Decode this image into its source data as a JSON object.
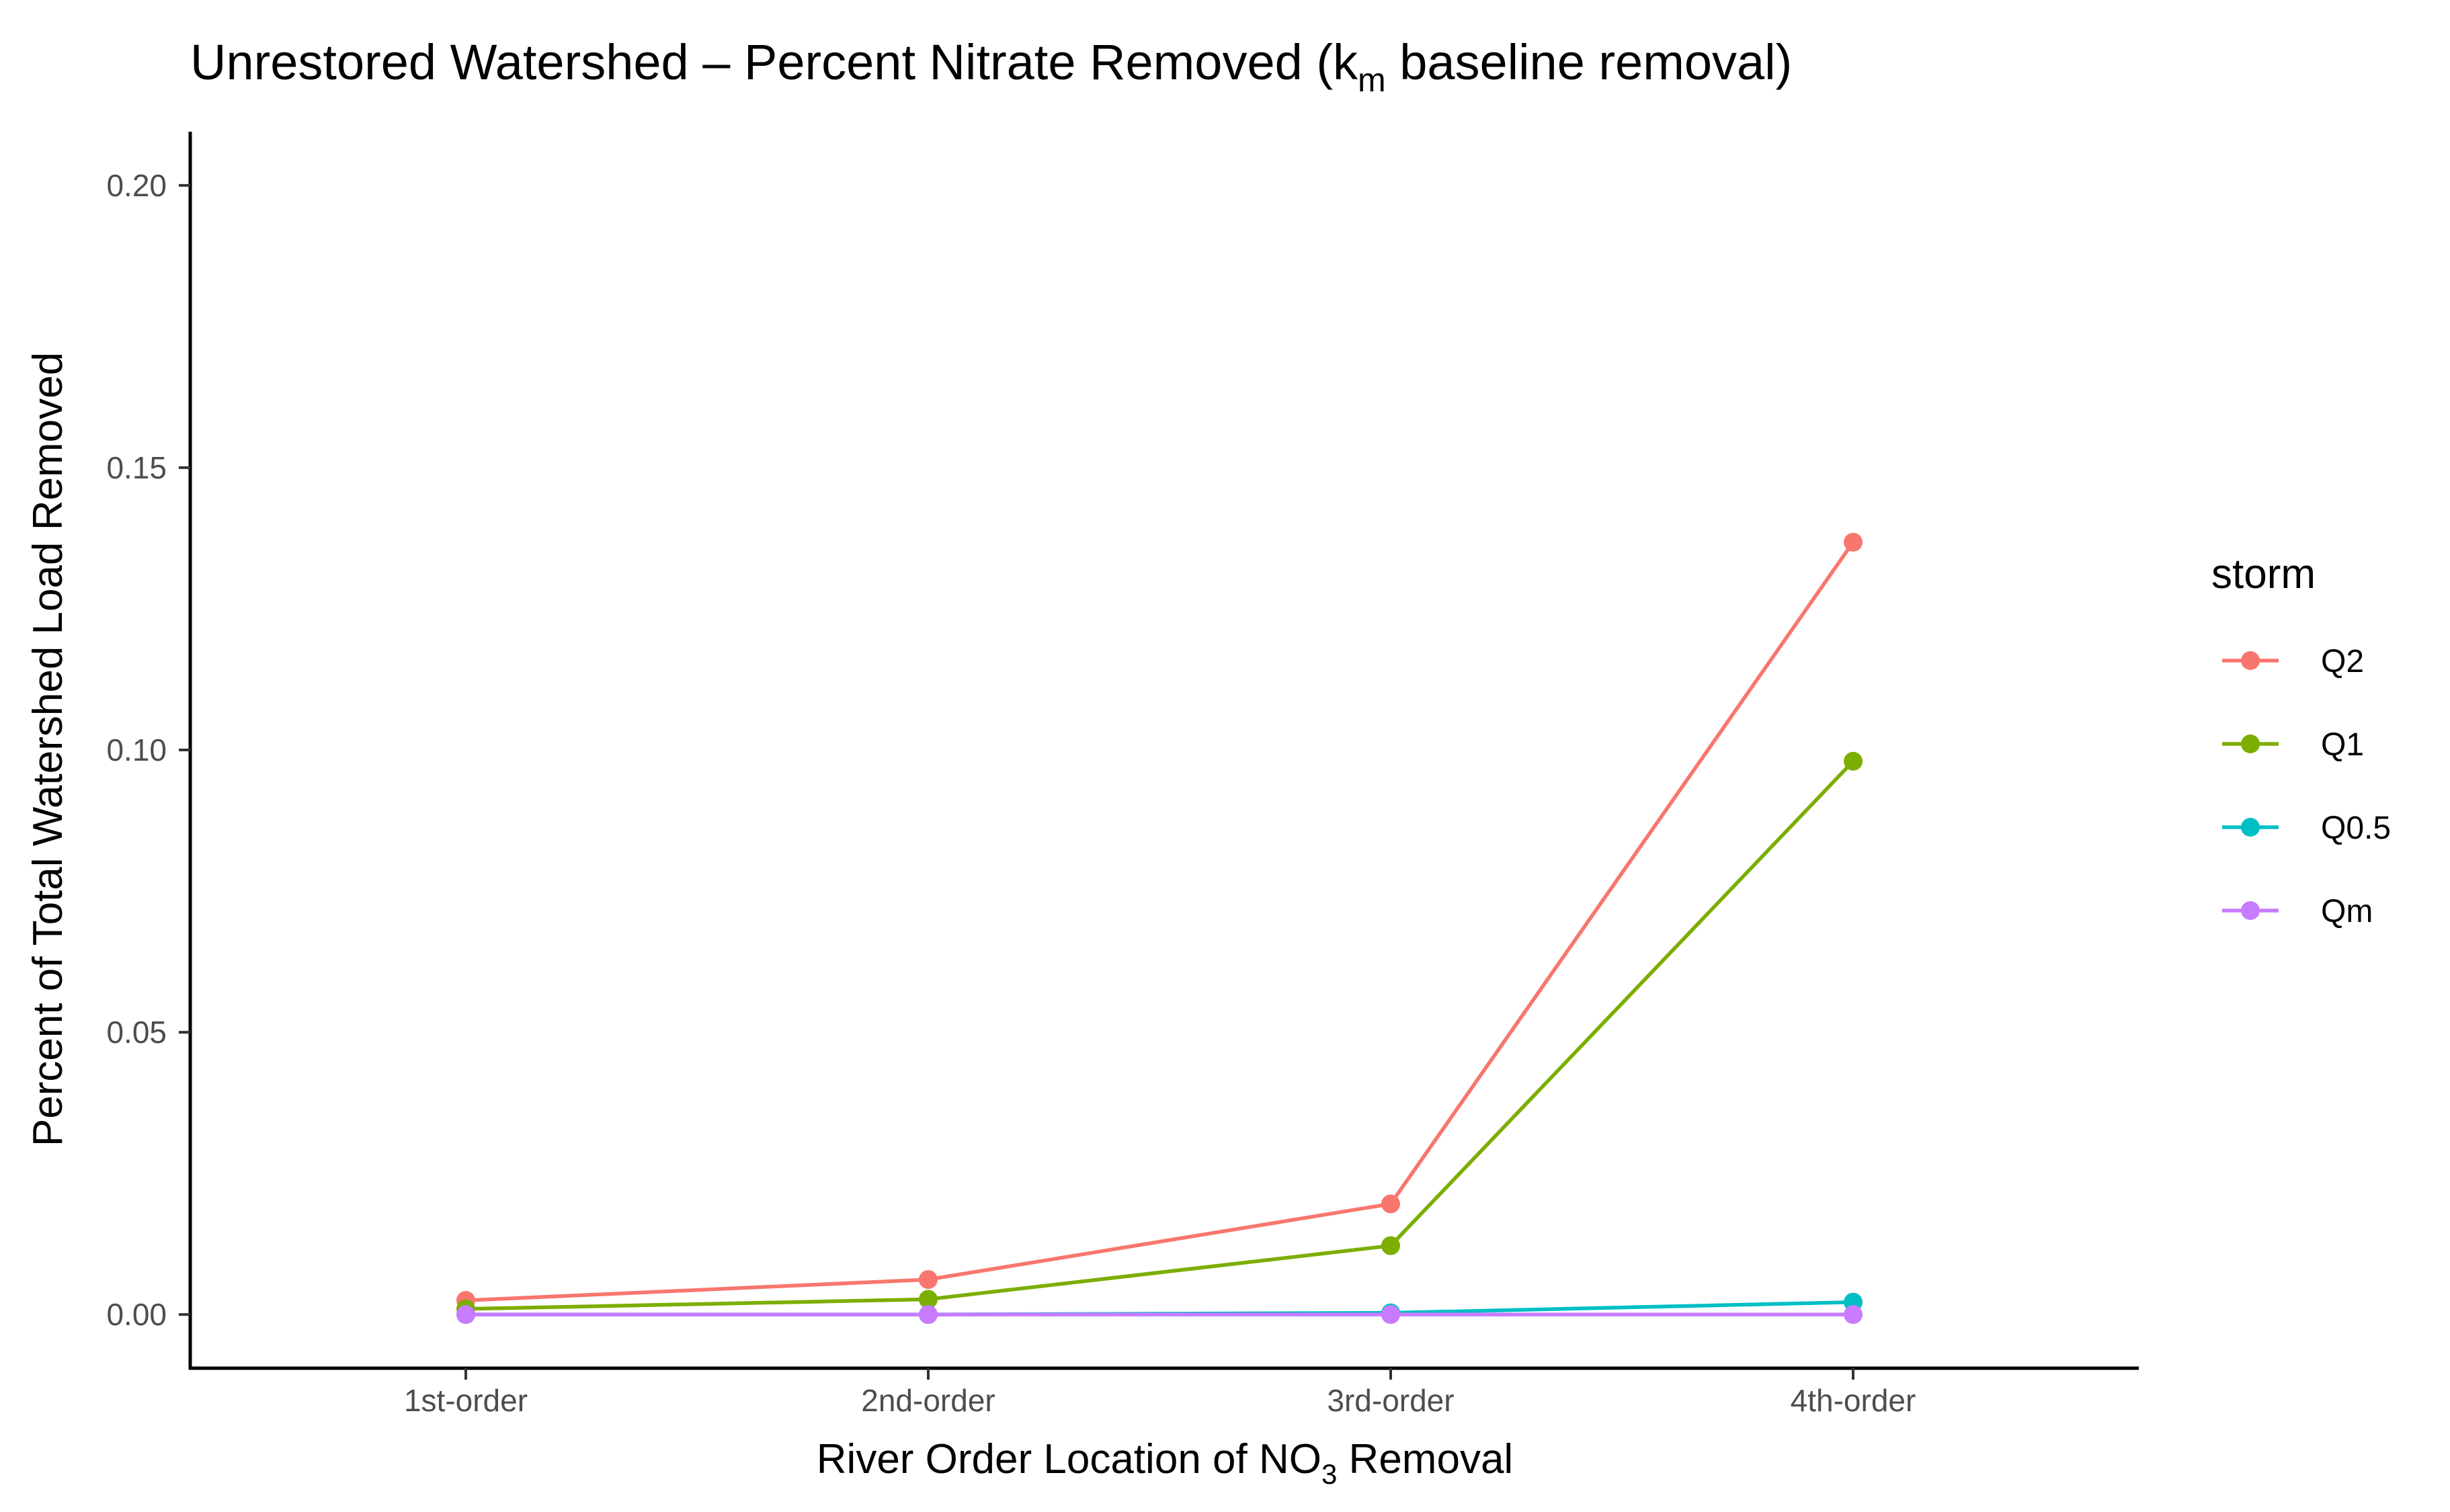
{
  "chart_data": {
    "type": "line",
    "title_main": "Unrestored Watershed –  Percent Nitrate Removed (k",
    "title_sub": "m",
    "title_tail": " baseline removal)",
    "xlabel_main": "River Order Location of NO",
    "xlabel_sub": "3",
    "xlabel_tail": " Removal",
    "ylabel": "Percent of Total Watershed Load Removed",
    "categories": [
      "1st-order",
      "2nd-order",
      "3rd-order",
      "4th-order"
    ],
    "yticks": [
      "0.00",
      "0.05",
      "0.10",
      "0.15",
      "0.20"
    ],
    "ytick_values": [
      0,
      0.05,
      0.1,
      0.15,
      0.2
    ],
    "ylim": [
      -0.0095,
      0.2095
    ],
    "grid": false,
    "legend_title": "storm",
    "legend_position": "right",
    "series": [
      {
        "name": "Q2",
        "color": "#F8766D",
        "values": [
          0.0025,
          0.0062,
          0.0196,
          0.1368
        ]
      },
      {
        "name": "Q1",
        "color": "#7CAE00",
        "values": [
          0.001,
          0.0027,
          0.0122,
          0.098
        ]
      },
      {
        "name": "Q0.5",
        "color": "#00BFC4",
        "values": [
          0.0,
          0.0,
          0.0003,
          0.0022
        ]
      },
      {
        "name": "Qm",
        "color": "#C77CFF",
        "values": [
          0.0,
          0.0,
          0.0,
          0.0
        ]
      }
    ]
  }
}
